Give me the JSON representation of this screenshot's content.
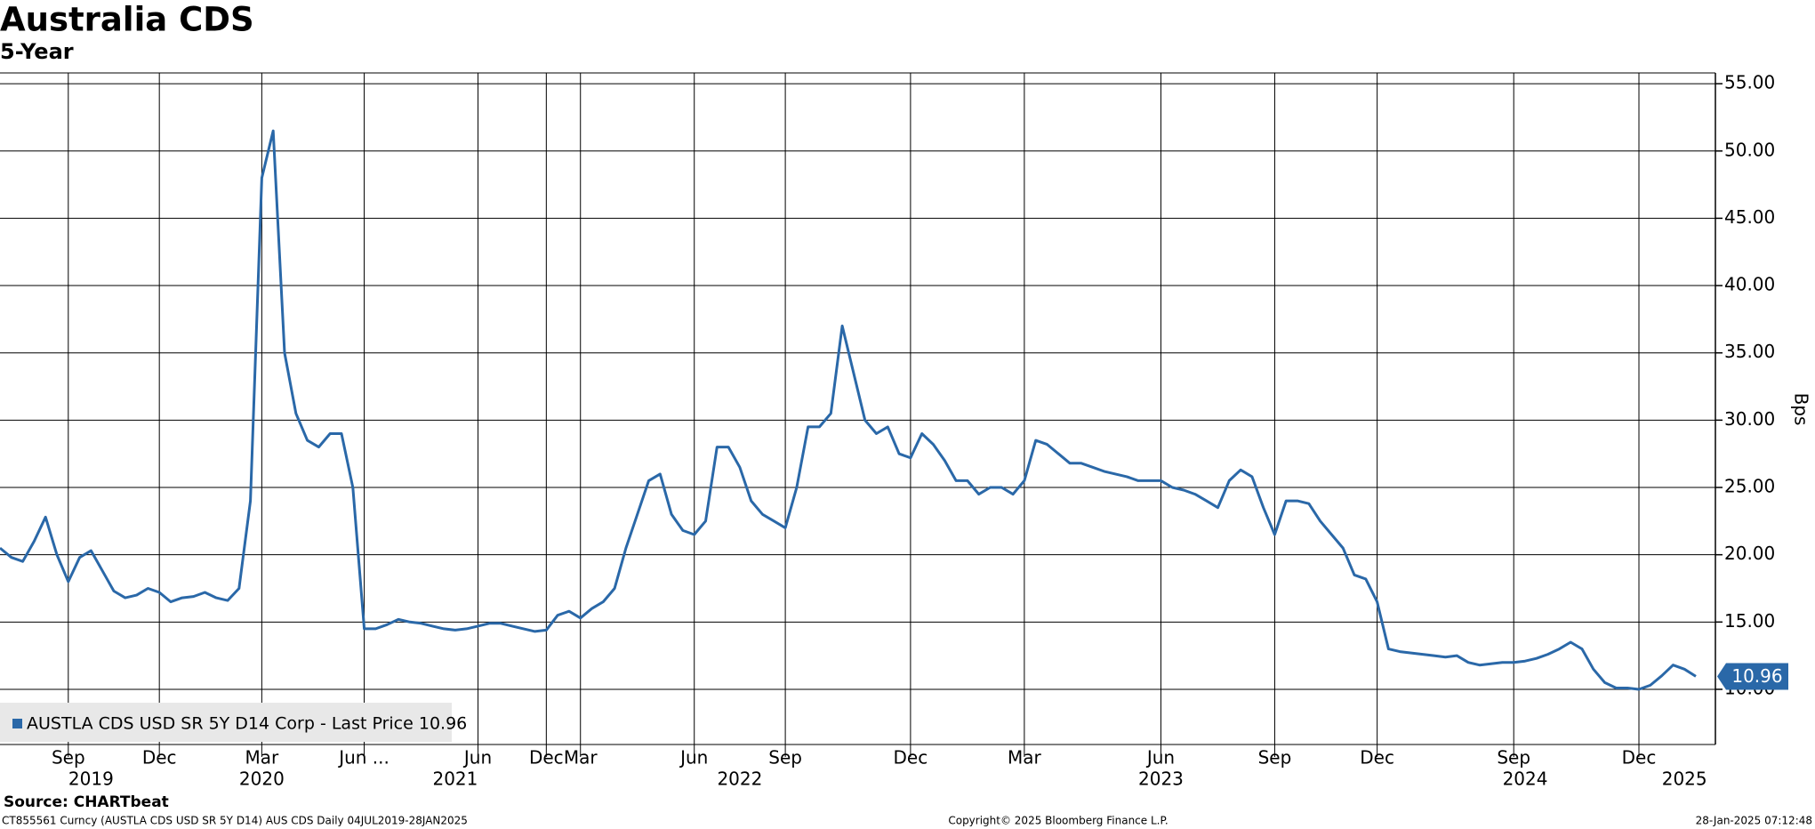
{
  "chart_data": {
    "type": "line",
    "title": "Australia CDS",
    "subtitle": "5-Year",
    "y_label": "Bps",
    "source": "Source: CHARTbeat",
    "footer_left": "CT855561 Curncy (AUSTLA CDS USD SR 5Y D14) AUS CDS  Daily 04JUL2019-28JAN2025",
    "footer_center": "Copyright© 2025 Bloomberg Finance L.P.",
    "footer_right": "28-Jan-2025 07:12:48",
    "categories": [
      null,
      null,
      null,
      null,
      null,
      null,
      "Sep",
      null,
      null,
      null,
      null,
      null,
      null,
      null,
      "Dec",
      null,
      null,
      null,
      null,
      null,
      null,
      null,
      null,
      "Mar",
      null,
      null,
      null,
      null,
      null,
      null,
      null,
      null,
      "Jun ...",
      null,
      null,
      null,
      null,
      null,
      null,
      null,
      null,
      null,
      "Jun",
      null,
      null,
      null,
      null,
      null,
      "Dec",
      null,
      null,
      "Mar",
      null,
      null,
      null,
      null,
      null,
      null,
      null,
      null,
      null,
      "Jun",
      null,
      null,
      null,
      null,
      null,
      null,
      null,
      "Sep",
      null,
      null,
      null,
      null,
      null,
      null,
      null,
      null,
      null,
      null,
      "Dec",
      null,
      null,
      null,
      null,
      null,
      null,
      null,
      null,
      null,
      "Mar",
      null,
      null,
      null,
      null,
      null,
      null,
      null,
      null,
      null,
      null,
      null,
      "Jun",
      null,
      null,
      null,
      null,
      null,
      null,
      null,
      null,
      null,
      "Sep",
      null,
      null,
      null,
      null,
      null,
      null,
      null,
      null,
      "Dec",
      null,
      null,
      null,
      null,
      null,
      null,
      null,
      null,
      null,
      null,
      null,
      "Sep",
      null,
      null,
      null,
      null,
      null,
      null,
      null,
      null,
      null,
      null,
      "Dec",
      null,
      null,
      null,
      null,
      null
    ],
    "year_labels": [
      null,
      null,
      null,
      null,
      null,
      null,
      null,
      null,
      "2019",
      null,
      null,
      null,
      null,
      null,
      null,
      null,
      null,
      null,
      null,
      null,
      null,
      null,
      null,
      "2020",
      null,
      null,
      null,
      null,
      null,
      null,
      null,
      null,
      null,
      null,
      null,
      null,
      null,
      null,
      null,
      null,
      "2021",
      null,
      null,
      null,
      null,
      null,
      null,
      null,
      null,
      null,
      null,
      null,
      null,
      null,
      null,
      null,
      null,
      null,
      null,
      null,
      null,
      null,
      null,
      null,
      null,
      "2022",
      null,
      null,
      null,
      null,
      null,
      null,
      null,
      null,
      null,
      null,
      null,
      null,
      null,
      null,
      null,
      null,
      null,
      null,
      null,
      null,
      null,
      null,
      null,
      null,
      null,
      null,
      null,
      null,
      null,
      null,
      null,
      null,
      null,
      null,
      null,
      null,
      "2023",
      null,
      null,
      null,
      null,
      null,
      null,
      null,
      null,
      null,
      null,
      null,
      null,
      null,
      null,
      null,
      null,
      null,
      null,
      null,
      null,
      null,
      null,
      null,
      null,
      null,
      null,
      null,
      null,
      null,
      null,
      null,
      "2024",
      null,
      null,
      null,
      null,
      null,
      null,
      null,
      null,
      null,
      null,
      null,
      null,
      null,
      "2025",
      null
    ],
    "series": [
      {
        "name": "AUSTLA CDS USD SR 5Y D14 Corp - Last Price 10.96",
        "color": "#2a68a8",
        "values": [
          20.5,
          19.8,
          19.5,
          21.0,
          22.8,
          20.0,
          18.0,
          19.8,
          20.3,
          18.8,
          17.3,
          16.8,
          17.0,
          17.5,
          17.2,
          16.5,
          16.8,
          16.9,
          17.2,
          16.8,
          16.6,
          17.5,
          24.0,
          48.0,
          51.5,
          35.0,
          30.5,
          28.5,
          28.0,
          29.0,
          29.0,
          25.0,
          14.5,
          14.5,
          14.8,
          15.2,
          15.0,
          14.9,
          14.7,
          14.5,
          14.4,
          14.5,
          14.7,
          14.9,
          14.9,
          14.7,
          14.5,
          14.3,
          14.4,
          15.5,
          15.8,
          15.3,
          16.0,
          16.5,
          17.5,
          20.5,
          23.0,
          25.5,
          26.0,
          23.0,
          21.8,
          21.5,
          22.5,
          28.0,
          28.0,
          26.5,
          24.0,
          23.0,
          22.5,
          22.0,
          25.0,
          29.5,
          29.5,
          30.5,
          37.0,
          33.5,
          30.0,
          29.0,
          29.5,
          27.5,
          27.2,
          29.0,
          28.2,
          27.0,
          25.5,
          25.5,
          24.5,
          25.0,
          25.0,
          24.5,
          25.5,
          28.5,
          28.2,
          27.5,
          26.8,
          26.8,
          26.5,
          26.2,
          26.0,
          25.8,
          25.5,
          25.5,
          25.5,
          25.0,
          24.8,
          24.5,
          24.0,
          23.5,
          25.5,
          26.3,
          25.8,
          23.5,
          21.5,
          24.0,
          24.0,
          23.8,
          22.5,
          21.5,
          20.5,
          18.5,
          18.2,
          16.5,
          13.0,
          12.8,
          12.7,
          12.6,
          12.5,
          12.4,
          12.5,
          12.0,
          11.8,
          11.9,
          12.0,
          12.0,
          12.1,
          12.3,
          12.6,
          13.0,
          13.5,
          13.0,
          11.5,
          10.5,
          10.1,
          10.1,
          10.0,
          10.3,
          11.0,
          11.8,
          11.5,
          10.96
        ]
      }
    ],
    "ylim": [
      5.9,
      55.8
    ],
    "yticks": [
      {
        "value": 10,
        "label": "10.00"
      },
      {
        "value": 15,
        "label": "15.00"
      },
      {
        "value": 20,
        "label": "20.00"
      },
      {
        "value": 25,
        "label": "25.00"
      },
      {
        "value": 30,
        "label": "30.00"
      },
      {
        "value": 35,
        "label": "35.00"
      },
      {
        "value": 40,
        "label": "40.00"
      },
      {
        "value": 45,
        "label": "45.00"
      },
      {
        "value": 50,
        "label": "50.00"
      },
      {
        "value": 55,
        "label": "55.00"
      }
    ],
    "grid": true
  }
}
